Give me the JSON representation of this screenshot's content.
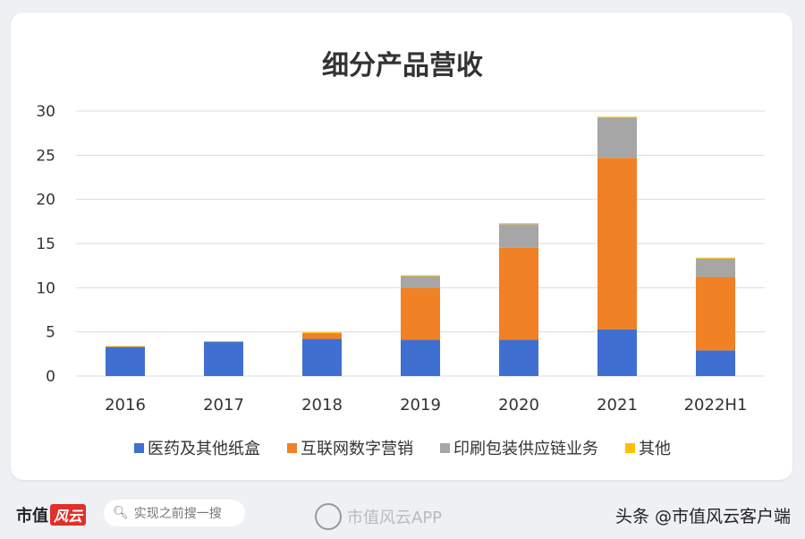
{
  "chart_data": {
    "type": "bar",
    "stacked": true,
    "title": "细分产品营收",
    "categories": [
      "2016",
      "2017",
      "2018",
      "2019",
      "2020",
      "2021",
      "2022H1"
    ],
    "series": [
      {
        "name": "医药及其他纸盒",
        "color": "#3f6fd0",
        "values": [
          3.3,
          3.85,
          4.2,
          4.1,
          4.1,
          5.3,
          2.9
        ]
      },
      {
        "name": "互联网数字营销",
        "color": "#f08125",
        "values": [
          0,
          0,
          0.7,
          5.9,
          10.4,
          19.4,
          8.3
        ]
      },
      {
        "name": "印刷包装供应链业务",
        "color": "#a6a6a6",
        "values": [
          0,
          0,
          0,
          1.3,
          2.7,
          4.6,
          2.1
        ]
      },
      {
        "name": "其他",
        "color": "#ffc000",
        "values": [
          0.1,
          0.1,
          0.05,
          0.1,
          0.1,
          0.05,
          0.1
        ]
      }
    ],
    "yticks": [
      0,
      5,
      10,
      15,
      20,
      25,
      30
    ],
    "ylim": [
      0,
      30
    ],
    "grid": true,
    "legend": "bottom"
  },
  "footer": {
    "logo_text": "市值",
    "logo_mark": "风云",
    "search_placeholder": "实现之前搜一搜",
    "app_name": "市值风云APP",
    "attribution": "头条 @市值风云客户端"
  }
}
